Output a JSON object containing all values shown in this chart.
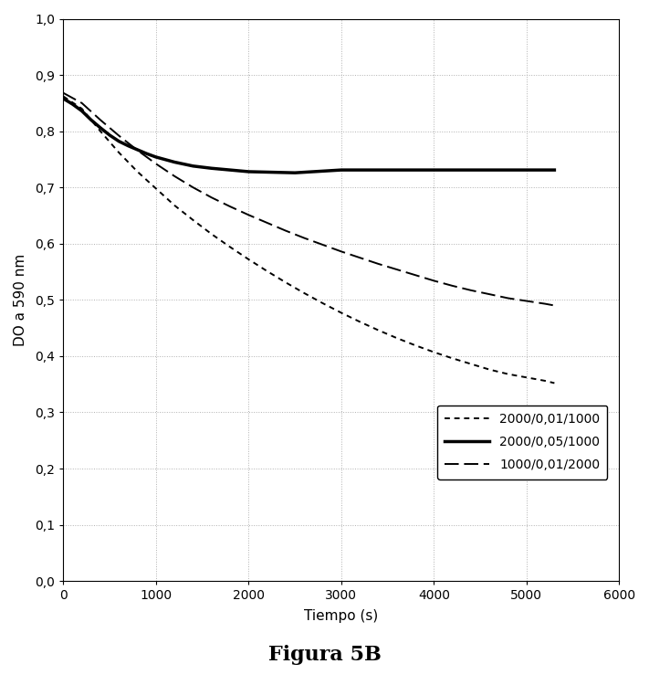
{
  "title": "Figura 5B",
  "xlabel": "Tiempo (s)",
  "ylabel": "DO a 590 nm",
  "xlim": [
    0,
    6000
  ],
  "ylim": [
    0.0,
    1.0
  ],
  "xticks": [
    0,
    1000,
    2000,
    3000,
    4000,
    5000,
    6000
  ],
  "yticks": [
    0.0,
    0.1,
    0.2,
    0.3,
    0.4,
    0.5,
    0.6,
    0.7,
    0.8,
    0.9,
    1.0
  ],
  "series": [
    {
      "label": "2000/0,01/1000",
      "linestyle": "dashed_short",
      "color": "#000000",
      "linewidth": 1.4,
      "x": [
        0,
        200,
        400,
        600,
        800,
        1000,
        1200,
        1400,
        1600,
        1800,
        2000,
        2200,
        2400,
        2600,
        2800,
        3000,
        3200,
        3400,
        3600,
        3800,
        4000,
        4200,
        4400,
        4600,
        4800,
        5000,
        5100,
        5200,
        5300
      ],
      "y": [
        0.862,
        0.84,
        0.8,
        0.762,
        0.728,
        0.698,
        0.668,
        0.642,
        0.617,
        0.594,
        0.572,
        0.551,
        0.531,
        0.512,
        0.494,
        0.477,
        0.461,
        0.446,
        0.432,
        0.419,
        0.407,
        0.396,
        0.386,
        0.376,
        0.368,
        0.362,
        0.359,
        0.356,
        0.352
      ]
    },
    {
      "label": "2000/0,05/1000",
      "linestyle": "solid",
      "color": "#000000",
      "linewidth": 2.5,
      "x": [
        0,
        100,
        200,
        300,
        400,
        500,
        600,
        700,
        800,
        900,
        1000,
        1200,
        1400,
        1600,
        1800,
        2000,
        2500,
        3000,
        3500,
        4000,
        4500,
        5000,
        5300
      ],
      "y": [
        0.858,
        0.848,
        0.836,
        0.82,
        0.806,
        0.793,
        0.782,
        0.774,
        0.767,
        0.76,
        0.754,
        0.745,
        0.738,
        0.734,
        0.731,
        0.728,
        0.726,
        0.731,
        0.731,
        0.731,
        0.731,
        0.731,
        0.731
      ]
    },
    {
      "label": "1000/0,01/2000",
      "linestyle": "dashed_long",
      "color": "#000000",
      "linewidth": 1.4,
      "x": [
        0,
        200,
        400,
        600,
        800,
        1000,
        1200,
        1400,
        1600,
        1800,
        2000,
        2200,
        2400,
        2600,
        2800,
        3000,
        3200,
        3400,
        3600,
        3800,
        4000,
        4200,
        4400,
        4600,
        4800,
        5000,
        5200,
        5300
      ],
      "y": [
        0.868,
        0.85,
        0.82,
        0.792,
        0.766,
        0.742,
        0.72,
        0.7,
        0.682,
        0.666,
        0.651,
        0.637,
        0.623,
        0.61,
        0.598,
        0.586,
        0.575,
        0.564,
        0.554,
        0.544,
        0.534,
        0.525,
        0.517,
        0.51,
        0.503,
        0.498,
        0.493,
        0.49
      ]
    }
  ],
  "background_color": "#ffffff",
  "grid_color": "#b0b0b0"
}
